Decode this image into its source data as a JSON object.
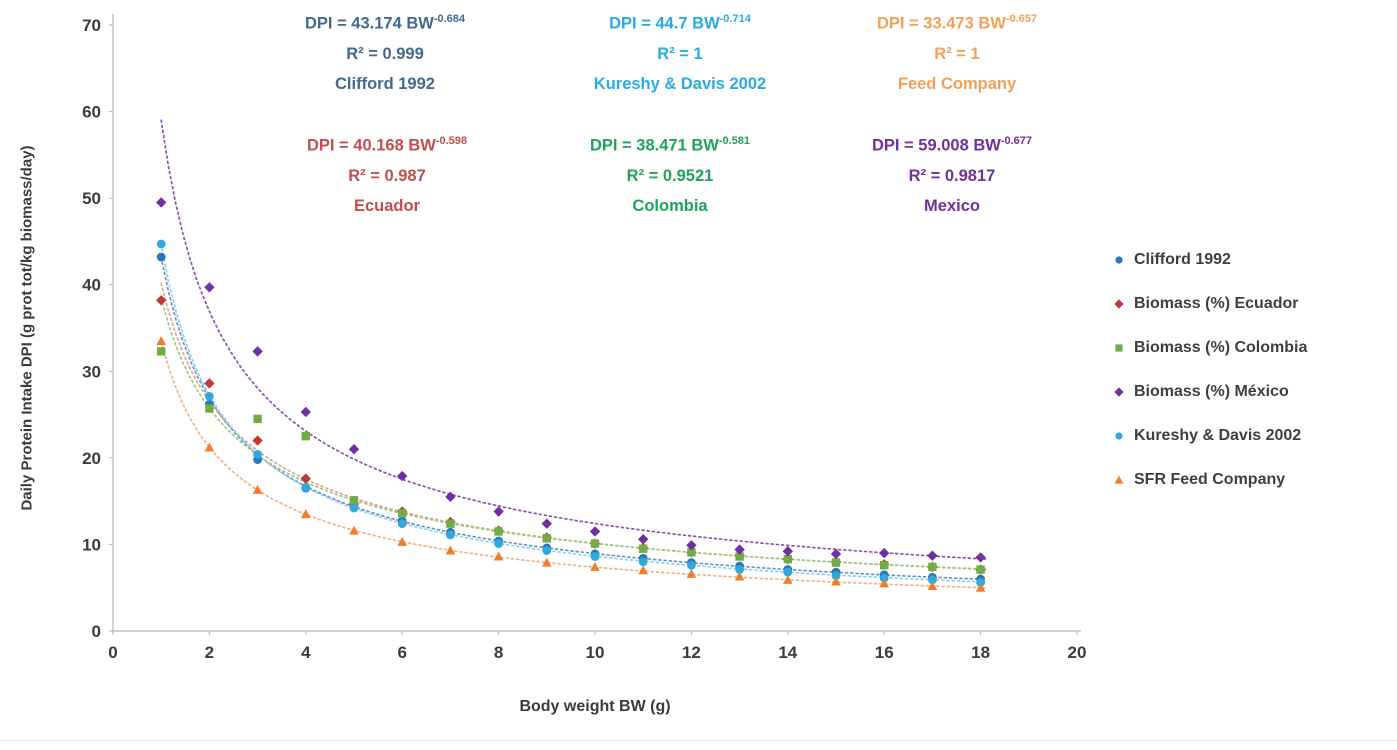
{
  "chart_data": {
    "type": "scatter",
    "title": "",
    "xlabel": "Body weight BW (g)",
    "ylabel": "Daily Protein Intake DPI (g prot tot/kg biomass/day)",
    "xlim": [
      0,
      20
    ],
    "ylim": [
      0,
      70
    ],
    "x_ticks": [
      0,
      2,
      4,
      6,
      8,
      10,
      12,
      14,
      16,
      18,
      20
    ],
    "y_ticks": [
      0,
      10,
      20,
      30,
      40,
      50,
      60,
      70
    ],
    "grid": false,
    "legend_position": "right",
    "x": [
      1,
      2,
      3,
      4,
      5,
      6,
      7,
      8,
      9,
      10,
      11,
      12,
      13,
      14,
      15,
      16,
      17,
      18
    ],
    "series": [
      {
        "name": "Clifford 1992",
        "marker": "circle",
        "color": "#2E75B6",
        "trend_color": "#6A93C4",
        "fit": {
          "a": 43.174,
          "b": -0.684
        },
        "values": [
          43.2,
          26.2,
          19.8,
          16.5,
          14.3,
          12.7,
          11.4,
          10.4,
          9.6,
          8.9,
          8.4,
          7.9,
          7.5,
          7.1,
          6.8,
          6.5,
          6.2,
          6.0
        ]
      },
      {
        "name": "Biomass (%) Ecuador",
        "marker": "diamond",
        "color": "#BE3A34",
        "trend_color": "#E3A09A",
        "fit": {
          "a": 40.168,
          "b": -0.598
        },
        "values": [
          38.2,
          28.6,
          22.0,
          17.6,
          14.7,
          13.8,
          12.6,
          11.6,
          10.8,
          10.1,
          9.6,
          9.1,
          8.7,
          8.3,
          8.0,
          7.7,
          7.4,
          7.1
        ]
      },
      {
        "name": "Biomass (%) Colombia",
        "marker": "square",
        "color": "#70AD47",
        "trend_color": "#9CCB7B",
        "fit": {
          "a": 38.471,
          "b": -0.581
        },
        "values": [
          32.3,
          25.7,
          24.5,
          22.5,
          15.1,
          13.6,
          12.4,
          11.5,
          10.7,
          10.1,
          9.5,
          9.1,
          8.6,
          8.3,
          7.9,
          7.6,
          7.4,
          7.1
        ]
      },
      {
        "name": "Biomass (%) México",
        "marker": "diamond",
        "color": "#7030A0",
        "trend_color": "#8C52B8",
        "fit": {
          "a": 59.008,
          "b": -0.677
        },
        "values": [
          49.5,
          39.7,
          32.3,
          25.3,
          21.0,
          17.9,
          15.5,
          13.8,
          12.4,
          11.5,
          10.6,
          9.9,
          9.4,
          9.2,
          8.9,
          9.0,
          8.7,
          8.5
        ]
      },
      {
        "name": "Kureshy & Davis 2002",
        "marker": "circle",
        "color": "#31A8DC",
        "trend_color": "#8FD0EE",
        "fit": {
          "a": 44.7,
          "b": -0.714
        },
        "values": [
          44.7,
          27.1,
          20.4,
          16.6,
          14.2,
          12.4,
          11.1,
          10.1,
          9.3,
          8.6,
          8.0,
          7.6,
          7.1,
          6.8,
          6.4,
          6.1,
          5.9,
          5.6
        ]
      },
      {
        "name": "SFR Feed Company",
        "marker": "triangle",
        "color": "#ED7D31",
        "trend_color": "#F4B183",
        "fit": {
          "a": 33.473,
          "b": -0.657
        },
        "values": [
          33.5,
          21.2,
          16.3,
          13.5,
          11.6,
          10.3,
          9.3,
          8.6,
          7.9,
          7.4,
          7.0,
          6.6,
          6.3,
          5.9,
          5.7,
          5.5,
          5.2,
          5.0
        ]
      }
    ],
    "annotations": [
      {
        "eq_base": "DPI = 43.174 BW",
        "exponent": "-0.684",
        "r2": "R² = 0.999",
        "label": "Clifford 1992",
        "color": "#44698D"
      },
      {
        "eq_base": "DPI = 44.7 BW",
        "exponent": "-0.714",
        "r2": "R² = 1",
        "label": "Kureshy & Davis 2002",
        "color": "#29ABE2"
      },
      {
        "eq_base": "DPI = 33.473 BW",
        "exponent": "-0.657",
        "r2": "R² = 1",
        "label": "Feed Company",
        "color": "#F2A057"
      },
      {
        "eq_base": "DPI = 40.168 BW",
        "exponent": "-0.598",
        "r2": "R² = 0.987",
        "label": "Ecuador",
        "color": "#C0504D"
      },
      {
        "eq_base": "DPI = 38.471 BW",
        "exponent": "-0.581",
        "r2": "R² = 0.9521",
        "label": "Colombia",
        "color": "#1FA25A"
      },
      {
        "eq_base": "DPI = 59.008 BW",
        "exponent": "-0.677",
        "r2": "R² = 0.9817",
        "label": "Mexico",
        "color": "#7030A0"
      }
    ]
  },
  "legend": {
    "items": [
      {
        "label": "Clifford 1992",
        "marker": "circle",
        "color": "#2E75B6"
      },
      {
        "label": "Biomass (%) Ecuador",
        "marker": "diamond",
        "color": "#BE3A34"
      },
      {
        "label": "Biomass (%) Colombia",
        "marker": "square",
        "color": "#70AD47"
      },
      {
        "label": "Biomass (%) México",
        "marker": "diamond",
        "color": "#7030A0"
      },
      {
        "label": "Kureshy & Davis 2002",
        "marker": "circle",
        "color": "#31A8DC"
      },
      {
        "label": "SFR Feed Company",
        "marker": "triangle",
        "color": "#ED7D31"
      }
    ]
  }
}
